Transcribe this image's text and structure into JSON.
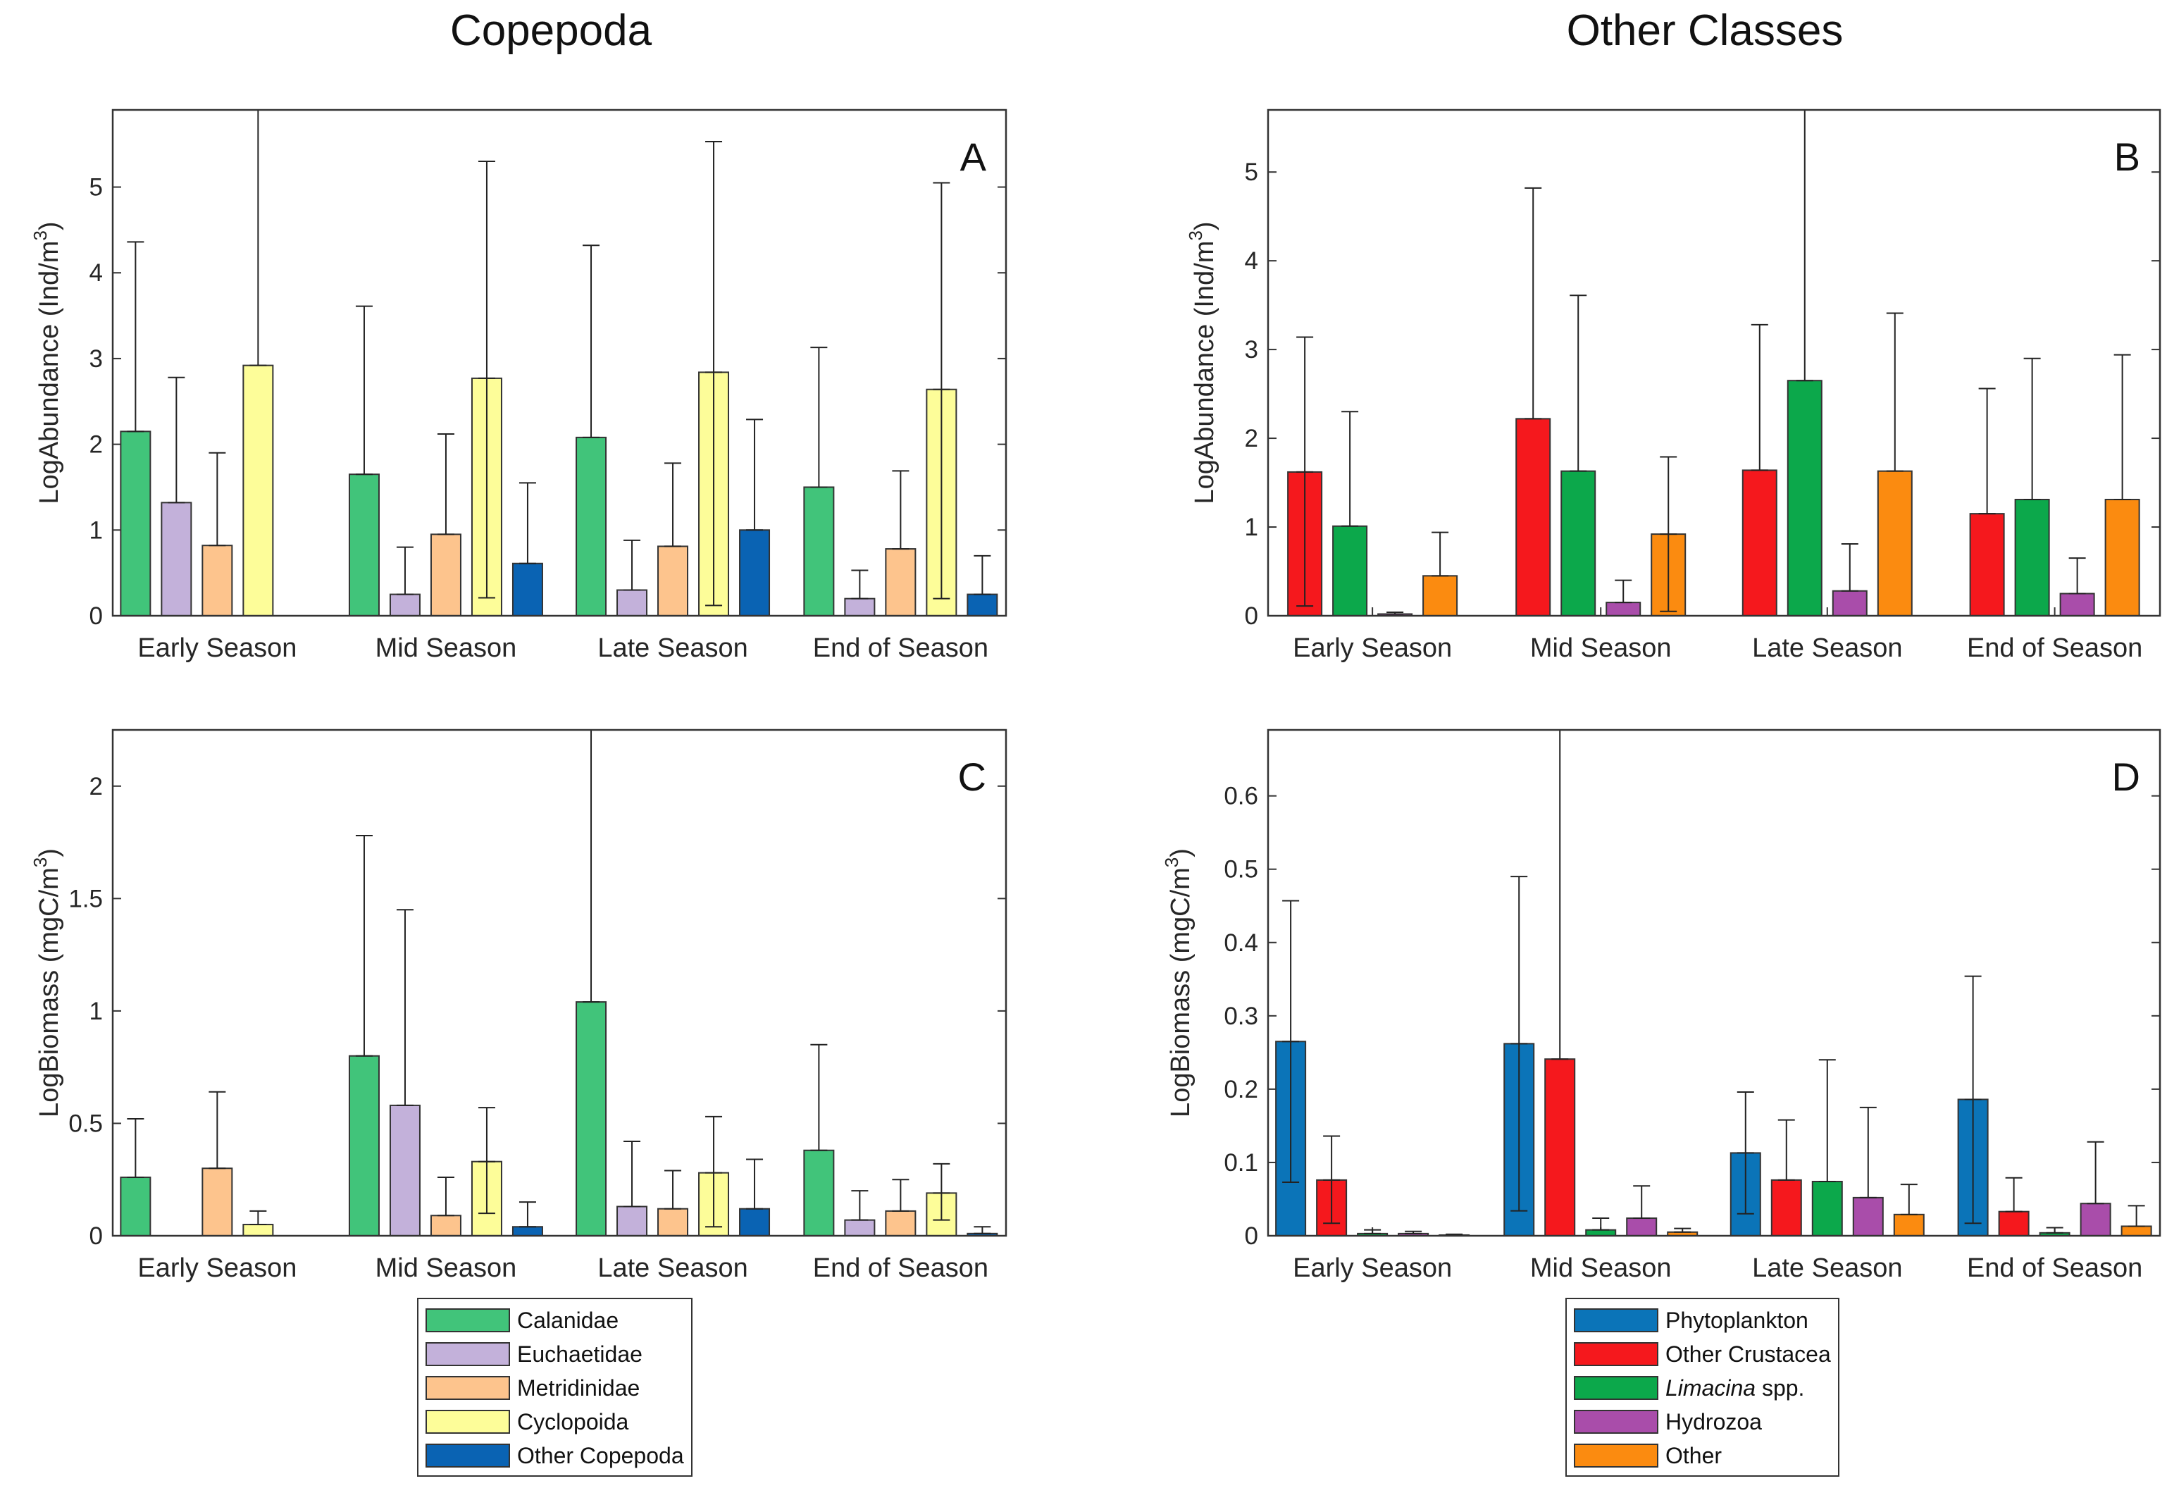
{
  "column_titles": {
    "left": "Copepoda",
    "right": "Other Classes"
  },
  "colors": {
    "calanidae": "#41c47a",
    "euchaetidae": "#c3b1da",
    "metridinidae": "#fdc48d",
    "cyclopoida": "#fdfd99",
    "other_copepoda": "#0a63b3",
    "phytoplankton": "#0b74b8",
    "other_crustacea": "#f5181d",
    "limacina": "#0ca84b",
    "hydrozoa": "#a94daa",
    "other": "#fb8b10"
  },
  "legends": {
    "copepoda": [
      {
        "label": "Calanidae",
        "color": "#41c47a"
      },
      {
        "label": "Euchaetidae",
        "color": "#c3b1da"
      },
      {
        "label": "Metridinidae",
        "color": "#fdc48d"
      },
      {
        "label": "Cyclopoida",
        "color": "#fdfd99"
      },
      {
        "label": "Other Copepoda",
        "color": "#0a63b3"
      }
    ],
    "other_classes": [
      {
        "label": "Phytoplankton",
        "color": "#0b74b8"
      },
      {
        "label": "Other Crustacea",
        "color": "#f5181d"
      },
      {
        "label_italic": "Limacina",
        "label_rest": " spp.",
        "color": "#0ca84b"
      },
      {
        "label": "Hydrozoa",
        "color": "#a94daa"
      },
      {
        "label": "Other",
        "color": "#fb8b10"
      }
    ]
  },
  "chart_data": [
    {
      "id": "A",
      "type": "bar",
      "panel_label": "A",
      "ylabel": "LogAbundance (Ind/m",
      "ylabel_sup": "3",
      "ylabel_end": ")",
      "ylim": [
        0,
        5.9
      ],
      "yticks": [
        0,
        1,
        2,
        3,
        4,
        5
      ],
      "ytick_labels": [
        "0",
        "1",
        "2",
        "3",
        "4",
        "5"
      ],
      "categories": [
        "Early Season",
        "Mid Season",
        "Late Season",
        "End of Season"
      ],
      "series": [
        {
          "name": "Calanidae",
          "color": "#41c47a",
          "values": [
            2.15,
            1.65,
            2.08,
            1.5
          ],
          "err_upper": [
            4.36,
            3.61,
            4.32,
            3.13
          ],
          "err_lower": [
            null,
            null,
            null,
            null
          ]
        },
        {
          "name": "Euchaetidae",
          "color": "#c3b1da",
          "values": [
            1.32,
            0.25,
            0.3,
            0.2
          ],
          "err_upper": [
            2.78,
            0.8,
            0.88,
            0.53
          ],
          "err_lower": [
            null,
            null,
            null,
            null
          ]
        },
        {
          "name": "Metridinidae",
          "color": "#fdc48d",
          "values": [
            0.82,
            0.95,
            0.81,
            0.78
          ],
          "err_upper": [
            1.9,
            2.12,
            1.78,
            1.69
          ],
          "err_lower": [
            null,
            null,
            null,
            null
          ]
        },
        {
          "name": "Cyclopoida",
          "color": "#fdfd99",
          "values": [
            2.92,
            2.77,
            2.84,
            2.64
          ],
          "err_upper": [
            6.5,
            5.3,
            5.53,
            5.05
          ],
          "err_lower": [
            null,
            0.21,
            0.12,
            0.2
          ]
        },
        {
          "name": "Other Copepoda",
          "color": "#0a63b3",
          "values": [
            0.0,
            0.61,
            1.0,
            0.25
          ],
          "err_upper": [
            null,
            1.55,
            2.29,
            0.7
          ],
          "err_lower": [
            null,
            null,
            null,
            null
          ]
        }
      ]
    },
    {
      "id": "B",
      "type": "bar",
      "panel_label": "B",
      "ylabel": "LogAbundance (Ind/m",
      "ylabel_sup": "3",
      "ylabel_end": ")",
      "ylim": [
        0,
        5.7
      ],
      "yticks": [
        0,
        1,
        2,
        3,
        4,
        5
      ],
      "ytick_labels": [
        "0",
        "1",
        "2",
        "3",
        "4",
        "5"
      ],
      "categories": [
        "Early Season",
        "Mid Season",
        "Late Season",
        "End of Season"
      ],
      "series": [
        {
          "name": "Other Crustacea",
          "color": "#f5181d",
          "values": [
            1.62,
            2.22,
            1.64,
            1.15
          ],
          "err_upper": [
            3.14,
            4.82,
            3.28,
            2.56
          ],
          "err_lower": [
            0.11,
            null,
            null,
            null
          ]
        },
        {
          "name": "Limacina spp.",
          "color": "#0ca84b",
          "values": [
            1.01,
            1.63,
            2.65,
            1.31
          ],
          "err_upper": [
            2.3,
            3.61,
            5.7,
            2.9
          ],
          "err_lower": [
            null,
            null,
            null,
            null
          ]
        },
        {
          "name": "Hydrozoa",
          "color": "#a94daa",
          "values": [
            0.02,
            0.15,
            0.28,
            0.25
          ],
          "err_upper": [
            0.04,
            0.4,
            0.81,
            0.65
          ],
          "err_lower": [
            null,
            null,
            null,
            null
          ]
        },
        {
          "name": "Other",
          "color": "#fb8b10",
          "values": [
            0.45,
            0.92,
            1.63,
            1.31
          ],
          "err_upper": [
            0.94,
            1.79,
            3.41,
            2.94
          ],
          "err_lower": [
            null,
            0.05,
            null,
            null
          ]
        }
      ]
    },
    {
      "id": "C",
      "type": "bar",
      "panel_label": "C",
      "ylabel": "LogBiomass (mgC/m",
      "ylabel_sup": "3",
      "ylabel_end": ")",
      "ylim": [
        0,
        2.25
      ],
      "yticks": [
        0,
        0.5,
        1,
        1.5,
        2
      ],
      "ytick_labels": [
        "0",
        "0.5",
        "1",
        "1.5",
        "2"
      ],
      "categories": [
        "Early Season",
        "Mid Season",
        "Late Season",
        "End of Season"
      ],
      "series": [
        {
          "name": "Calanidae",
          "color": "#41c47a",
          "values": [
            0.26,
            0.8,
            1.04,
            0.38
          ],
          "err_upper": [
            0.52,
            1.78,
            2.25,
            0.85
          ],
          "err_lower": [
            null,
            null,
            null,
            null
          ]
        },
        {
          "name": "Euchaetidae",
          "color": "#c3b1da",
          "values": [
            0.0,
            0.58,
            0.13,
            0.07
          ],
          "err_upper": [
            null,
            1.45,
            0.42,
            0.2
          ],
          "err_lower": [
            null,
            null,
            null,
            null
          ]
        },
        {
          "name": "Metridinidae",
          "color": "#fdc48d",
          "values": [
            0.3,
            0.09,
            0.12,
            0.11
          ],
          "err_upper": [
            0.64,
            0.26,
            0.29,
            0.25
          ],
          "err_lower": [
            null,
            null,
            null,
            null
          ]
        },
        {
          "name": "Cyclopoida",
          "color": "#fdfd99",
          "values": [
            0.05,
            0.33,
            0.28,
            0.19
          ],
          "err_upper": [
            0.11,
            0.57,
            0.53,
            0.32
          ],
          "err_lower": [
            null,
            0.1,
            0.04,
            0.07
          ]
        },
        {
          "name": "Other Copepoda",
          "color": "#0a63b3",
          "values": [
            0.0,
            0.04,
            0.12,
            0.01
          ],
          "err_upper": [
            null,
            0.15,
            0.34,
            0.04
          ],
          "err_lower": [
            null,
            null,
            null,
            null
          ]
        }
      ]
    },
    {
      "id": "D",
      "type": "bar",
      "panel_label": "D",
      "ylabel": "LogBiomass (mgC/m",
      "ylabel_sup": "3",
      "ylabel_end": ")",
      "ylim": [
        0,
        0.69
      ],
      "yticks": [
        0,
        0.1,
        0.2,
        0.3,
        0.4,
        0.5,
        0.6
      ],
      "ytick_labels": [
        "0",
        "0.1",
        "0.2",
        "0.3",
        "0.4",
        "0.5",
        "0.6"
      ],
      "categories": [
        "Early Season",
        "Mid Season",
        "Late Season",
        "End of Season"
      ],
      "series": [
        {
          "name": "Phytoplankton",
          "color": "#0b74b8",
          "values": [
            0.265,
            0.262,
            0.113,
            0.186
          ],
          "err_upper": [
            0.457,
            0.49,
            0.196,
            0.354
          ],
          "err_lower": [
            0.073,
            0.034,
            0.03,
            0.017
          ]
        },
        {
          "name": "Other Crustacea",
          "color": "#f5181d",
          "values": [
            0.076,
            0.241,
            0.076,
            0.033
          ],
          "err_upper": [
            0.136,
            0.69,
            0.158,
            0.079
          ],
          "err_lower": [
            0.017,
            null,
            null,
            null
          ]
        },
        {
          "name": "Limacina spp.",
          "color": "#0ca84b",
          "values": [
            0.003,
            0.008,
            0.074,
            0.004
          ],
          "err_upper": [
            0.008,
            0.024,
            0.24,
            0.011
          ],
          "err_lower": [
            null,
            null,
            null,
            null
          ]
        },
        {
          "name": "Hydrozoa",
          "color": "#a94daa",
          "values": [
            0.003,
            0.024,
            0.052,
            0.044
          ],
          "err_upper": [
            0.006,
            0.068,
            0.175,
            0.128
          ],
          "err_lower": [
            null,
            null,
            null,
            null
          ]
        },
        {
          "name": "Other",
          "color": "#fb8b10",
          "values": [
            0.001,
            0.005,
            0.029,
            0.013
          ],
          "err_upper": [
            0.002,
            0.01,
            0.07,
            0.041
          ],
          "err_lower": [
            null,
            null,
            null,
            null
          ]
        }
      ]
    }
  ]
}
